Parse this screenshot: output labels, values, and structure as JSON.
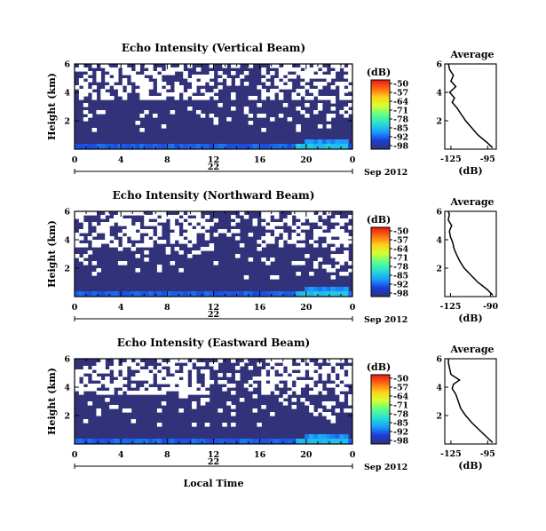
{
  "chart_data": {
    "type": "heatmap",
    "colorbar_label": "(dB)",
    "colorbar_ticks": [
      "-50",
      "-57",
      "-64",
      "-71",
      "-78",
      "-85",
      "-92",
      "-98"
    ],
    "colorbar_range": [
      -98,
      -50
    ],
    "colorscale": [
      "#32327a",
      "#1c3cd8",
      "#1aa0ff",
      "#28e0d0",
      "#5cff8c",
      "#d8ff30",
      "#ffd018",
      "#ff6a10",
      "#e81818"
    ],
    "time_ticks": [
      "0",
      "4",
      "8",
      "12",
      "16",
      "20",
      "0"
    ],
    "date_tick": "22",
    "month_label": "Sep 2012",
    "xlabel": "Local Time",
    "height_ticks": [
      "6",
      "4",
      "2"
    ],
    "ylabel": "Height (km)",
    "height_range_km": [
      0,
      6
    ],
    "time_range_hours": [
      0,
      24
    ],
    "average_title": "Average",
    "average_ylim": [
      0,
      6
    ],
    "average_height_ticks": [
      "6",
      "4",
      "2"
    ],
    "average_xlabel": "(dB)",
    "panels": [
      {
        "title": "Echo Intensity (Vertical Beam)",
        "average_xticks": [
          "-125",
          "-95"
        ],
        "average_xlim": [
          -130,
          -88
        ],
        "average_profile": {
          "height_km": [
            0.1,
            0.5,
            1.0,
            1.5,
            2.0,
            2.5,
            2.9,
            3.3,
            3.6,
            4.0,
            4.4,
            4.8,
            5.2,
            5.6,
            6.0
          ],
          "db": [
            -91,
            -96,
            -103,
            -108,
            -113,
            -117,
            -120,
            -124,
            -122,
            -126,
            -121,
            -125,
            -123,
            -126,
            -127
          ]
        }
      },
      {
        "title": "Echo Intensity (Northward Beam)",
        "average_xticks": [
          "-125",
          "-90"
        ],
        "average_xlim": [
          -130,
          -85
        ],
        "average_profile": {
          "height_km": [
            0.1,
            0.5,
            1.0,
            1.5,
            2.0,
            2.5,
            3.0,
            3.4,
            3.8,
            4.2,
            4.6,
            5.0,
            5.4,
            5.8,
            6.0
          ],
          "db": [
            -88,
            -93,
            -101,
            -107,
            -113,
            -117,
            -120,
            -122,
            -123,
            -125,
            -126,
            -124,
            -127,
            -126,
            -127
          ]
        }
      },
      {
        "title": "Echo Intensity (Eastward Beam)",
        "average_xticks": [
          "-125",
          "-95"
        ],
        "average_xlim": [
          -130,
          -88
        ],
        "average_profile": {
          "height_km": [
            0.1,
            0.5,
            1.0,
            1.5,
            2.0,
            2.5,
            3.0,
            3.5,
            3.9,
            4.2,
            4.5,
            4.9,
            5.3,
            5.7,
            6.0
          ],
          "db": [
            -91,
            -96,
            -102,
            -108,
            -113,
            -117,
            -119,
            -121,
            -124,
            -123,
            -118,
            -125,
            -126,
            -127,
            -127
          ]
        }
      }
    ]
  }
}
